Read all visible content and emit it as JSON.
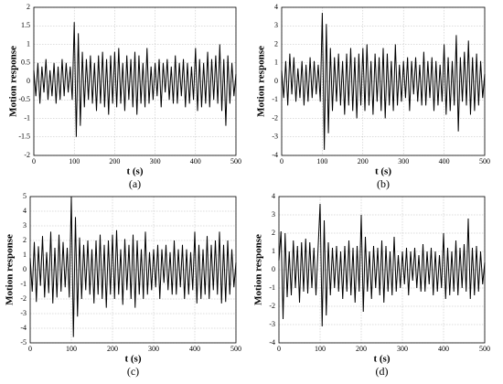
{
  "chart_data": [
    {
      "type": "line",
      "caption": "(a)",
      "xlabel": "t (s)",
      "ylabel": "Motion response",
      "color": "#000000",
      "grid": true,
      "xlim": [
        0,
        500
      ],
      "xticks": [
        0,
        100,
        200,
        300,
        400,
        500
      ],
      "ylim": [
        -2,
        2
      ],
      "yticks": [
        -2,
        -1.5,
        -1,
        -0.5,
        0,
        0.5,
        1,
        1.5,
        2
      ],
      "x": [
        0,
        5,
        10,
        15,
        20,
        25,
        30,
        35,
        40,
        45,
        50,
        55,
        60,
        65,
        70,
        75,
        80,
        85,
        90,
        95,
        100,
        105,
        110,
        115,
        120,
        125,
        130,
        135,
        140,
        145,
        150,
        155,
        160,
        165,
        170,
        175,
        180,
        185,
        190,
        195,
        200,
        205,
        210,
        215,
        220,
        225,
        230,
        235,
        240,
        245,
        250,
        255,
        260,
        265,
        270,
        275,
        280,
        285,
        290,
        295,
        300,
        305,
        310,
        315,
        320,
        325,
        330,
        335,
        340,
        345,
        350,
        355,
        360,
        365,
        370,
        375,
        380,
        385,
        390,
        395,
        400,
        405,
        410,
        415,
        420,
        425,
        430,
        435,
        440,
        445,
        450,
        455,
        460,
        465,
        470,
        475,
        480,
        485,
        490,
        495,
        500
      ],
      "values": [
        0.3,
        -0.4,
        0.5,
        -0.6,
        0.4,
        -0.3,
        0.6,
        -0.5,
        0.3,
        -0.4,
        0.5,
        -0.6,
        0.4,
        -0.5,
        0.6,
        -0.4,
        0.5,
        -0.3,
        0.4,
        -0.5,
        1.6,
        -1.5,
        1.3,
        -1.2,
        0.8,
        -0.7,
        0.6,
        -0.5,
        0.7,
        -0.6,
        0.5,
        -0.8,
        0.7,
        -0.6,
        0.8,
        -0.7,
        0.6,
        -0.9,
        0.7,
        -0.6,
        0.8,
        -0.7,
        0.9,
        -0.6,
        0.5,
        -0.8,
        0.7,
        -0.5,
        0.6,
        -0.7,
        0.8,
        -0.9,
        0.7,
        -0.6,
        0.5,
        -0.7,
        0.9,
        -0.6,
        0.4,
        -0.5,
        0.5,
        -0.4,
        0.6,
        -0.7,
        0.5,
        -0.3,
        0.6,
        -0.5,
        0.4,
        -0.6,
        0.7,
        -0.6,
        0.5,
        -0.4,
        0.6,
        -0.7,
        0.5,
        -0.6,
        0.4,
        -0.5,
        0.9,
        -0.8,
        0.6,
        -0.7,
        0.5,
        -0.6,
        0.8,
        -0.7,
        0.6,
        -0.5,
        0.7,
        -0.6,
        1.0,
        -0.8,
        0.6,
        -1.2,
        0.7,
        -0.6,
        0.5,
        -0.4,
        0.2
      ]
    },
    {
      "type": "line",
      "caption": "(b)",
      "xlabel": "t (s)",
      "ylabel": "Motion response",
      "color": "#000000",
      "grid": true,
      "xlim": [
        0,
        500
      ],
      "xticks": [
        0,
        100,
        200,
        300,
        400,
        500
      ],
      "ylim": [
        -4,
        4
      ],
      "yticks": [
        -4,
        -3,
        -2,
        -1,
        0,
        1,
        2,
        3,
        4
      ],
      "x": [
        0,
        5,
        10,
        15,
        20,
        25,
        30,
        35,
        40,
        45,
        50,
        55,
        60,
        65,
        70,
        75,
        80,
        85,
        90,
        95,
        100,
        105,
        110,
        115,
        120,
        125,
        130,
        135,
        140,
        145,
        150,
        155,
        160,
        165,
        170,
        175,
        180,
        185,
        190,
        195,
        200,
        205,
        210,
        215,
        220,
        225,
        230,
        235,
        240,
        245,
        250,
        255,
        260,
        265,
        270,
        275,
        280,
        285,
        290,
        295,
        300,
        305,
        310,
        315,
        320,
        325,
        330,
        335,
        340,
        345,
        350,
        355,
        360,
        365,
        370,
        375,
        380,
        385,
        390,
        395,
        400,
        405,
        410,
        415,
        420,
        425,
        430,
        435,
        440,
        445,
        450,
        455,
        460,
        465,
        470,
        475,
        480,
        485,
        490,
        495,
        500
      ],
      "values": [
        0.6,
        -0.9,
        1.1,
        -1.3,
        1.5,
        -0.7,
        1.3,
        -1.1,
        0.7,
        -0.9,
        1.1,
        -1.3,
        0.9,
        -1.1,
        1.3,
        -0.9,
        1.1,
        -0.7,
        0.9,
        -1.1,
        3.7,
        -3.7,
        3.1,
        -2.8,
        1.8,
        -1.6,
        1.3,
        -1.1,
        1.5,
        -1.3,
        1.1,
        -1.8,
        1.5,
        -1.3,
        1.8,
        -1.6,
        1.3,
        -2.0,
        1.5,
        -1.3,
        1.8,
        -1.6,
        2.0,
        -1.3,
        1.1,
        -1.8,
        1.5,
        -1.1,
        1.3,
        -1.6,
        1.8,
        -2.0,
        1.5,
        -1.3,
        1.1,
        -1.6,
        2.0,
        -1.3,
        0.9,
        -1.1,
        1.1,
        -0.9,
        1.3,
        -1.6,
        1.1,
        -0.7,
        1.3,
        -1.1,
        0.9,
        -1.3,
        1.6,
        -1.3,
        1.1,
        -0.9,
        1.3,
        -1.6,
        1.1,
        -1.3,
        0.9,
        -1.1,
        2.0,
        -1.8,
        1.3,
        -1.6,
        1.1,
        -1.3,
        2.5,
        -2.7,
        1.3,
        -1.1,
        1.6,
        -1.3,
        2.2,
        -1.8,
        1.3,
        -1.6,
        1.5,
        -1.3,
        1.1,
        -0.9,
        0.4
      ]
    },
    {
      "type": "line",
      "caption": "(c)",
      "xlabel": "t (s)",
      "ylabel": "Motion response",
      "color": "#000000",
      "grid": true,
      "xlim": [
        0,
        500
      ],
      "xticks": [
        0,
        100,
        200,
        300,
        400,
        500
      ],
      "ylim": [
        -5,
        5
      ],
      "yticks": [
        -5,
        -4,
        -3,
        -2,
        -1,
        0,
        1,
        2,
        3,
        4,
        5
      ],
      "x": [
        0,
        5,
        10,
        15,
        20,
        25,
        30,
        35,
        40,
        45,
        50,
        55,
        60,
        65,
        70,
        75,
        80,
        85,
        90,
        95,
        100,
        105,
        110,
        115,
        120,
        125,
        130,
        135,
        140,
        145,
        150,
        155,
        160,
        165,
        170,
        175,
        180,
        185,
        190,
        195,
        200,
        205,
        210,
        215,
        220,
        225,
        230,
        235,
        240,
        245,
        250,
        255,
        260,
        265,
        270,
        275,
        280,
        285,
        290,
        295,
        300,
        305,
        310,
        315,
        320,
        325,
        330,
        335,
        340,
        345,
        350,
        355,
        360,
        365,
        370,
        375,
        380,
        385,
        390,
        395,
        400,
        405,
        410,
        415,
        420,
        425,
        430,
        435,
        440,
        445,
        450,
        455,
        460,
        465,
        470,
        475,
        480,
        485,
        490,
        495,
        500
      ],
      "values": [
        0.8,
        -1.5,
        1.9,
        -2.2,
        1.6,
        -1.1,
        2.3,
        -1.9,
        1.2,
        -1.6,
        2.6,
        -2.3,
        1.5,
        -1.9,
        2.4,
        -1.5,
        1.9,
        -1.2,
        1.5,
        -1.9,
        5.0,
        -4.6,
        3.6,
        -3.2,
        2.2,
        -2.0,
        1.7,
        -1.4,
        2.0,
        -1.7,
        1.4,
        -2.3,
        2.0,
        -1.7,
        2.4,
        -2.0,
        1.7,
        -2.6,
        2.0,
        -1.7,
        2.4,
        -2.0,
        2.7,
        -1.7,
        1.4,
        -2.4,
        2.1,
        -1.4,
        1.7,
        -2.0,
        2.4,
        -2.6,
        2.0,
        -1.7,
        1.4,
        -2.0,
        2.6,
        -1.7,
        1.2,
        -1.4,
        1.4,
        -1.2,
        1.7,
        -2.0,
        1.4,
        -0.9,
        1.7,
        -1.4,
        1.2,
        -1.7,
        2.0,
        -1.7,
        1.4,
        -1.2,
        1.7,
        -2.0,
        1.4,
        -1.7,
        1.2,
        -1.4,
        2.6,
        -2.3,
        1.7,
        -2.0,
        1.4,
        -1.7,
        2.3,
        -2.0,
        1.7,
        -1.4,
        2.0,
        -1.7,
        2.6,
        -2.3,
        1.7,
        -2.2,
        2.0,
        -1.7,
        1.4,
        -1.2,
        0.5
      ]
    },
    {
      "type": "line",
      "caption": "(d)",
      "xlabel": "t (s)",
      "ylabel": "Motion response",
      "color": "#000000",
      "grid": true,
      "xlim": [
        0,
        500
      ],
      "xticks": [
        0,
        100,
        200,
        300,
        400,
        500
      ],
      "ylim": [
        -4,
        4
      ],
      "yticks": [
        -4,
        -3,
        -2,
        -1,
        0,
        1,
        2,
        3,
        4
      ],
      "x": [
        0,
        5,
        10,
        15,
        20,
        25,
        30,
        35,
        40,
        45,
        50,
        55,
        60,
        65,
        70,
        75,
        80,
        85,
        90,
        95,
        100,
        105,
        110,
        115,
        120,
        125,
        130,
        135,
        140,
        145,
        150,
        155,
        160,
        165,
        170,
        175,
        180,
        185,
        190,
        195,
        200,
        205,
        210,
        215,
        220,
        225,
        230,
        235,
        240,
        245,
        250,
        255,
        260,
        265,
        270,
        275,
        280,
        285,
        290,
        295,
        300,
        305,
        310,
        315,
        320,
        325,
        330,
        335,
        340,
        345,
        350,
        355,
        360,
        365,
        370,
        375,
        380,
        385,
        390,
        395,
        400,
        405,
        410,
        415,
        420,
        425,
        430,
        435,
        440,
        445,
        450,
        455,
        460,
        465,
        470,
        475,
        480,
        485,
        490,
        495,
        500
      ],
      "values": [
        0.5,
        2.1,
        -2.7,
        2.0,
        -1.5,
        1.0,
        -1.4,
        1.6,
        -1.0,
        1.3,
        -1.8,
        1.5,
        -1.2,
        1.7,
        -1.3,
        1.5,
        -1.0,
        1.2,
        -1.4,
        1.1,
        3.6,
        -3.1,
        2.7,
        -2.5,
        1.5,
        -1.4,
        1.2,
        -1.0,
        1.3,
        -1.2,
        1.0,
        -1.6,
        1.3,
        -1.2,
        1.6,
        -1.4,
        1.2,
        -1.8,
        1.3,
        -1.2,
        3.0,
        -2.3,
        1.8,
        -1.2,
        1.0,
        -1.6,
        1.3,
        -1.0,
        1.2,
        -1.4,
        1.6,
        -1.8,
        1.3,
        -1.2,
        1.0,
        -1.4,
        1.8,
        -1.2,
        0.8,
        -1.0,
        1.0,
        -0.8,
        1.2,
        -1.4,
        1.0,
        -0.6,
        1.2,
        -1.0,
        0.8,
        -1.2,
        1.4,
        -1.2,
        1.0,
        -0.8,
        1.2,
        -1.4,
        1.0,
        -1.2,
        0.8,
        -1.0,
        2.0,
        -1.6,
        1.2,
        -1.4,
        1.0,
        -1.2,
        1.6,
        -1.4,
        1.2,
        -1.0,
        1.4,
        -1.2,
        2.8,
        -1.6,
        1.2,
        -1.4,
        1.3,
        -1.2,
        1.0,
        -0.8,
        0.4
      ]
    }
  ]
}
